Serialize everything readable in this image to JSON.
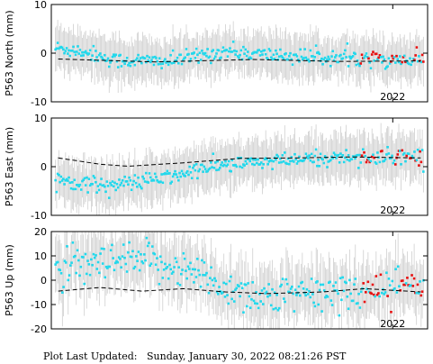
{
  "footer": {
    "label": "Plot Last Updated:",
    "timestamp": "Sunday, January 30, 2022 08:21:26 PST"
  },
  "colors": {
    "points": "#22d8ec",
    "recent_points": "#e81010",
    "error_bars": "#cfcfcf",
    "trend": "#000000",
    "frame": "#000000"
  },
  "chart_data": [
    {
      "type": "scatter",
      "ylabel": "P563 North (mm)",
      "ylim": [
        -10,
        10
      ],
      "yticks": [
        -10,
        0,
        10
      ],
      "xlim": [
        2019.55,
        2022.25
      ],
      "xticks": [
        {
          "value": 2022.0,
          "label": "2022"
        }
      ],
      "grid": false,
      "trend": {
        "style": "dashed",
        "points": [
          [
            2019.6,
            -1.2
          ],
          [
            2020.3,
            -1.8
          ],
          [
            2021.0,
            -1.3
          ],
          [
            2021.6,
            -1.7
          ],
          [
            2022.2,
            -1.6
          ]
        ]
      },
      "series_profile": {
        "anchors": [
          [
            2019.6,
            1.0
          ],
          [
            2019.8,
            0.3
          ],
          [
            2020.0,
            -1.5
          ],
          [
            2020.4,
            -1.7
          ],
          [
            2020.8,
            0.5
          ],
          [
            2021.0,
            -0.2
          ],
          [
            2021.4,
            -0.8
          ],
          [
            2021.8,
            -1.2
          ],
          [
            2022.2,
            -1.4
          ]
        ],
        "scatter": 0.8,
        "error": 4.2,
        "n": 330,
        "recent_from": 2021.77
      }
    },
    {
      "type": "scatter",
      "ylabel": "P563 East (mm)",
      "ylim": [
        -10,
        10
      ],
      "yticks": [
        -10,
        0,
        10
      ],
      "xlim": [
        2019.55,
        2022.25
      ],
      "xticks": [
        {
          "value": 2022.0,
          "label": "2022"
        }
      ],
      "grid": false,
      "trend": {
        "style": "dashed",
        "points": [
          [
            2019.6,
            1.8
          ],
          [
            2019.9,
            0.5
          ],
          [
            2020.1,
            0.1
          ],
          [
            2020.5,
            0.8
          ],
          [
            2020.9,
            1.7
          ],
          [
            2021.3,
            1.8
          ],
          [
            2021.7,
            2.0
          ],
          [
            2022.2,
            1.8
          ]
        ]
      },
      "series_profile": {
        "anchors": [
          [
            2019.6,
            -2.5
          ],
          [
            2019.8,
            -3.5
          ],
          [
            2020.0,
            -3.8
          ],
          [
            2020.4,
            -2.2
          ],
          [
            2020.7,
            0.0
          ],
          [
            2021.0,
            0.8
          ],
          [
            2021.4,
            1.5
          ],
          [
            2021.7,
            2.0
          ],
          [
            2022.2,
            2.2
          ]
        ],
        "scatter": 0.8,
        "error": 4.5,
        "n": 330,
        "recent_from": 2021.77
      }
    },
    {
      "type": "scatter",
      "ylabel": "P563 Up (mm)",
      "ylim": [
        -20,
        20
      ],
      "yticks": [
        -20,
        -10,
        0,
        10,
        20
      ],
      "xlim": [
        2019.55,
        2022.25
      ],
      "xticks": [
        {
          "value": 2022.0,
          "label": "2022"
        }
      ],
      "grid": false,
      "trend": {
        "style": "dashed",
        "points": [
          [
            2019.6,
            -4.5
          ],
          [
            2019.9,
            -3.0
          ],
          [
            2020.2,
            -4.5
          ],
          [
            2020.5,
            -3.5
          ],
          [
            2020.8,
            -4.8
          ],
          [
            2021.1,
            -5.5
          ],
          [
            2021.5,
            -4.8
          ],
          [
            2021.8,
            -3.5
          ],
          [
            2022.2,
            -4.8
          ]
        ]
      },
      "series_profile": {
        "anchors": [
          [
            2019.6,
            4.0
          ],
          [
            2019.9,
            6.0
          ],
          [
            2020.2,
            8.0
          ],
          [
            2020.5,
            5.0
          ],
          [
            2020.8,
            -3.0
          ],
          [
            2021.1,
            -7.0
          ],
          [
            2021.4,
            -6.0
          ],
          [
            2021.7,
            -4.0
          ],
          [
            2022.0,
            -2.0
          ],
          [
            2022.2,
            -5.0
          ]
        ],
        "scatter": 4.0,
        "error": 11.0,
        "n": 320,
        "recent_from": 2021.77
      }
    }
  ]
}
